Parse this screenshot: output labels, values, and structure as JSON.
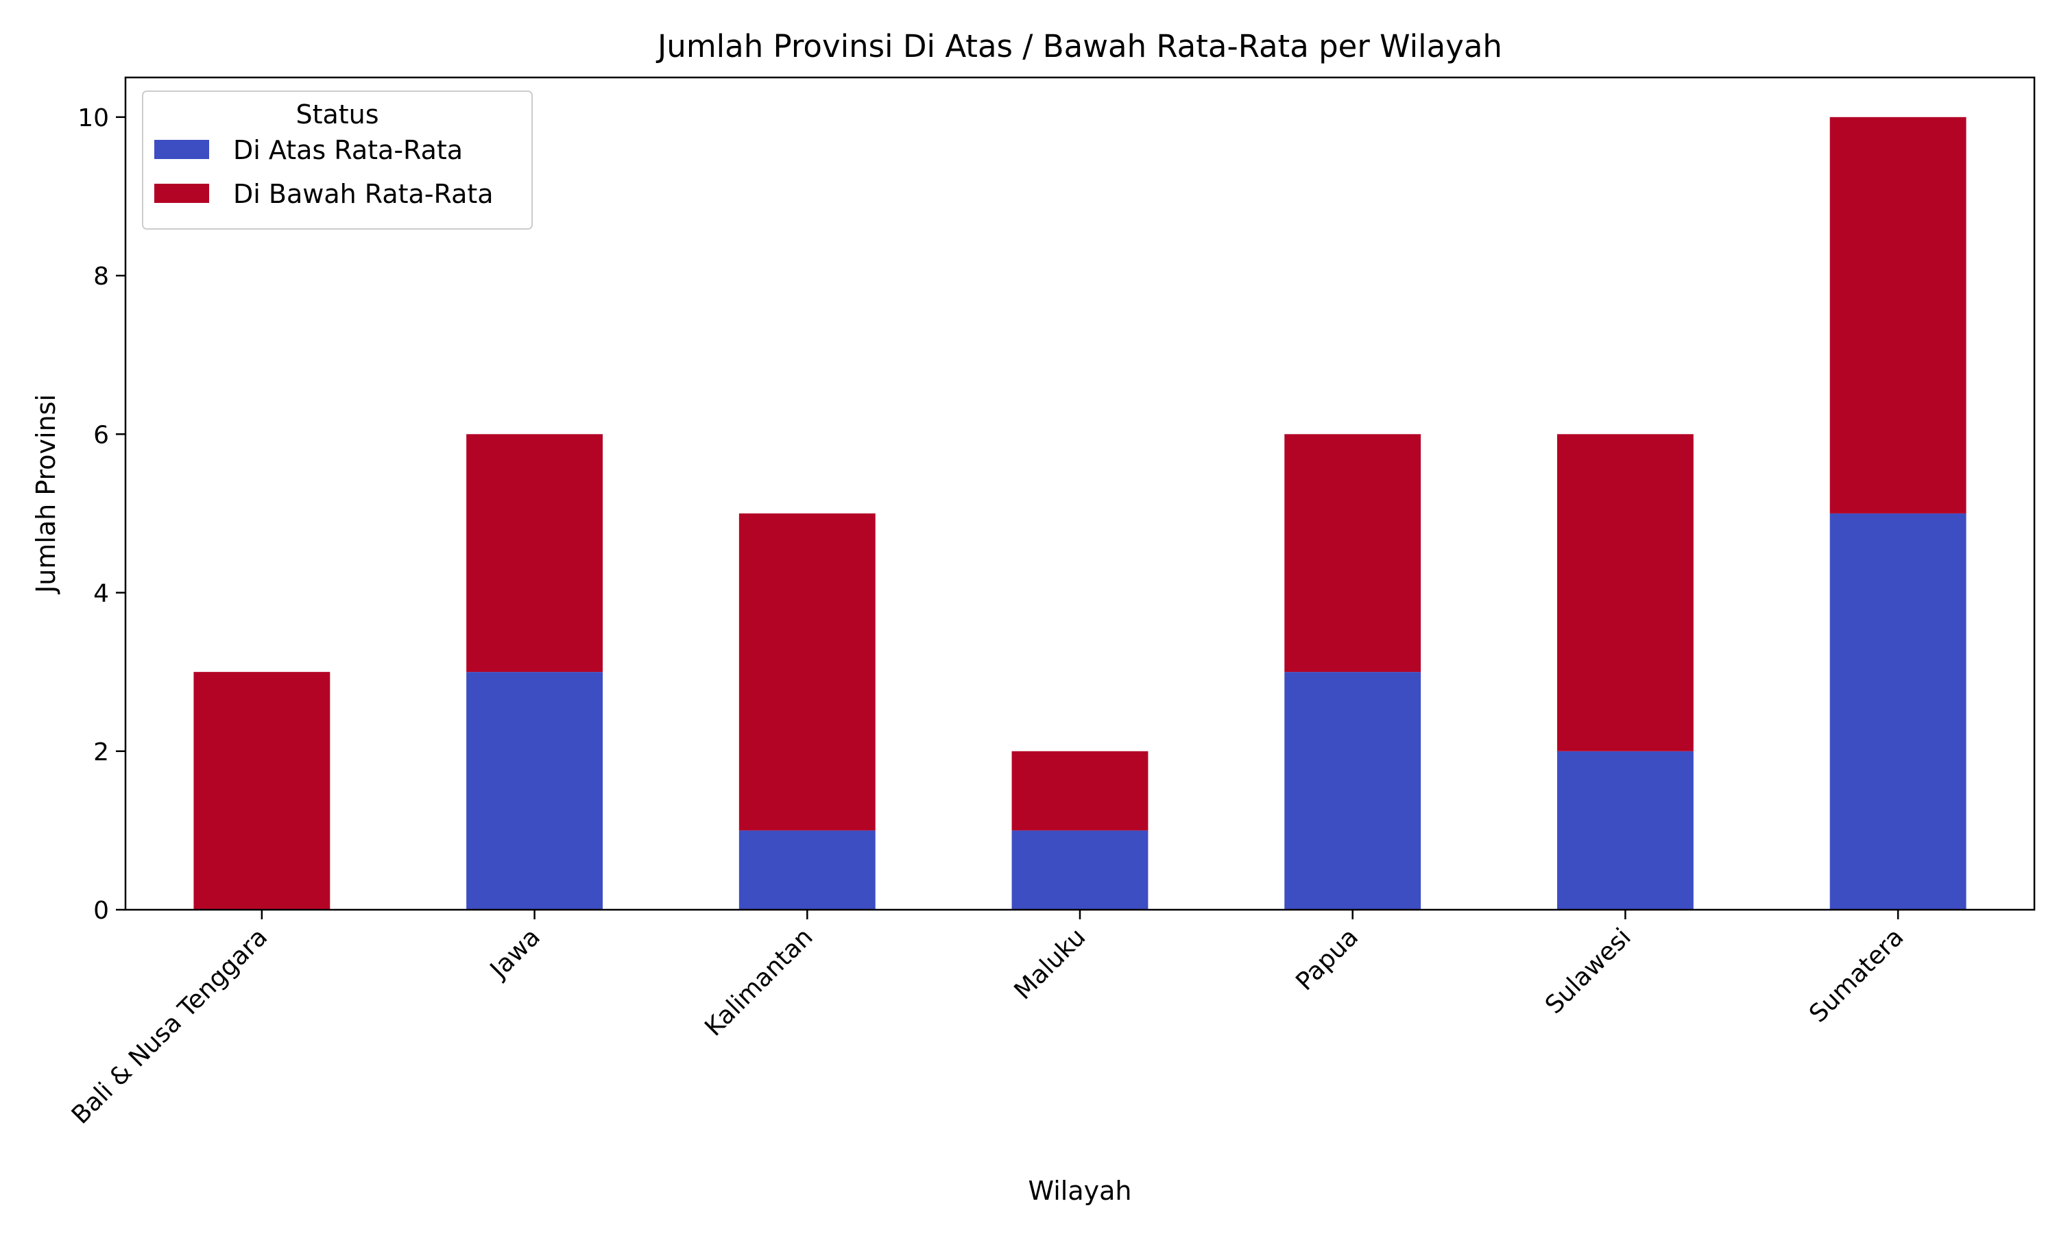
{
  "chart_data": {
    "type": "bar",
    "stacked": true,
    "title": "Jumlah Provinsi Di Atas / Bawah Rata-Rata per Wilayah",
    "xlabel": "Wilayah",
    "ylabel": "Jumlah Provinsi",
    "categories": [
      "Bali & Nusa Tenggara",
      "Jawa",
      "Kalimantan",
      "Maluku",
      "Papua",
      "Sulawesi",
      "Sumatera"
    ],
    "series": [
      {
        "name": "Di Atas Rata-Rata",
        "color": "#3d4ec2",
        "values": [
          0,
          3,
          1,
          1,
          3,
          2,
          5
        ]
      },
      {
        "name": "Di Bawah Rata-Rata",
        "color": "#b40426",
        "values": [
          3,
          3,
          4,
          1,
          3,
          4,
          5
        ]
      }
    ],
    "ylim": [
      0,
      10.5
    ],
    "yticks": [
      0,
      2,
      4,
      6,
      8,
      10
    ],
    "grid": false,
    "legend": {
      "title": "Status",
      "placement": "top-left"
    }
  }
}
